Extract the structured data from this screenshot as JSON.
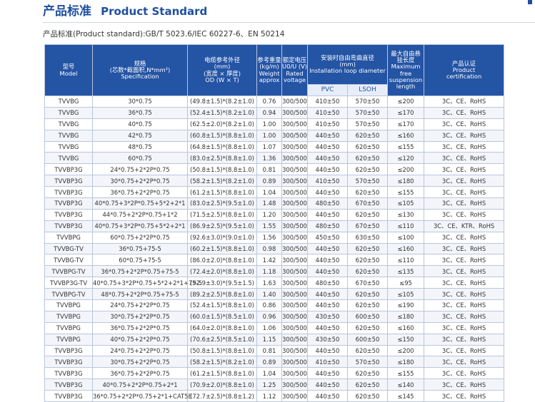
{
  "header": {
    "title_zh": "产品标准",
    "title_en": "Product Standard",
    "standard_line": "产品标准(Product standard):GB/T 5023.6/IEC 60227-6、EN 50214"
  },
  "table": {
    "columns": {
      "model": [
        "型号",
        "Model"
      ],
      "spec": [
        "规格",
        "(芯数*截面积,N*mm²)",
        "Specification"
      ],
      "od": [
        "电缆参考外径",
        "(mm)",
        "(宽度 × 厚度)",
        "OD (W × T)"
      ],
      "weight": [
        "参考重量",
        "(kg/m)",
        "Weight",
        "approx"
      ],
      "voltage": [
        "额定电压",
        "U0/U (V)",
        "Rated",
        "voltage"
      ],
      "install": [
        "安装时自由弯曲直径",
        "(mm)",
        "Installation loop diameter"
      ],
      "pvc": "PVC",
      "lsoh": "LSOH",
      "suspension": [
        "最大自由悬",
        "挂长度",
        "Maximum",
        "free",
        "suspension",
        "length"
      ],
      "cert": [
        "产品认证",
        "Product",
        "certification"
      ]
    },
    "rows": [
      [
        "TVVBG",
        "30*0.75",
        "(49.8±1.5)*(8.2±1.0)",
        "0.76",
        "300/500",
        "410±50",
        "570±50",
        "≤200",
        "3C、CE、RoHS"
      ],
      [
        "TVVBG",
        "36*0.75",
        "(52.4±1.5)*(8.2±1.0)",
        "0.94",
        "300/500",
        "410±50",
        "570±50",
        "≤170",
        "3C、CE、RoHS"
      ],
      [
        "TVVBG",
        "40*0.75",
        "(62.5±2.0)*(8.2±1.0)",
        "1.00",
        "300/500",
        "410±50",
        "570±50",
        "≤170",
        "3C、CE、RoHS"
      ],
      [
        "TVVBG",
        "42*0.75",
        "(60.8±1.5)*(8.8±1.0)",
        "1.00",
        "300/500",
        "440±50",
        "620±50",
        "≤160",
        "3C、CE、RoHS"
      ],
      [
        "TVVBG",
        "48*0.75",
        "(64.8±1.5)*(8.8±1.0)",
        "1.07",
        "300/500",
        "440±50",
        "620±50",
        "≤155",
        "3C、CE、RoHS"
      ],
      [
        "TVVBG",
        "60*0.75",
        "(83.0±2.5)*(8.8±1.0)",
        "1.36",
        "300/500",
        "440±50",
        "620±50",
        "≤120",
        "3C、CE、RoHS"
      ],
      [
        "TVVBP3G",
        "24*0.75+2*2P*0.75",
        "(50.8±1.5)*(8.8±1.0)",
        "0.81",
        "300/500",
        "440±50",
        "620±50",
        "≤200",
        "3C、CE、RoHS"
      ],
      [
        "TVVBP3G",
        "30*0.75+2*2P*0.75",
        "(58.2±1.5)*(8.2±1.0)",
        "0.89",
        "300/500",
        "410±50",
        "570±50",
        "≤180",
        "3C、CE、RoHS"
      ],
      [
        "TVVBP3G",
        "36*0.75+2*2P*0.75",
        "(61.2±1.5)*(8.8±1.0)",
        "1.04",
        "300/500",
        "440±50",
        "620±50",
        "≤155",
        "3C、CE、RoHS"
      ],
      [
        "TVVBP3G",
        "40*0.75+3*2P*0.75+5*2+2*1",
        "(83.0±2.5)*(9.5±1.0)",
        "1.48",
        "300/500",
        "480±50",
        "670±50",
        "≤105",
        "3C、CE、RoHS"
      ],
      [
        "TVVBP3G",
        "44*0.75+2*2P*0.75+1*2",
        "(71.5±2.5)*(8.8±1.0)",
        "1.20",
        "300/500",
        "440±50",
        "620±50",
        "≤130",
        "3C、CE、RoHS"
      ],
      [
        "TVVBP3G",
        "40*0.75+3*2P*0.75+5*2+2*1",
        "(86.9±2.5)*(9.5±1.0)",
        "1.55",
        "300/500",
        "480±50",
        "670±50",
        "≤110",
        "3C、CE、KTR、RoHS"
      ],
      [
        "TVVBPG",
        "60*0.75+2*2P*0.75",
        "(92.6±3.0)*(9.0±1.0)",
        "1.56",
        "300/500",
        "450±50",
        "630±50",
        "≤100",
        "3C、CE、RoHS"
      ],
      [
        "TVVBG-TV",
        "36*0.75+75-5",
        "(60.2±1.5)*(8.8±1.0)",
        "0.98",
        "300/500",
        "440±50",
        "620±50",
        "≤160",
        "3C、CE、RoHS"
      ],
      [
        "TVVBG-TV",
        "60*0.75+75-5",
        "(86.0±2.0)*(8.8±1.0)",
        "1.42",
        "300/500",
        "440±50",
        "620±50",
        "≤110",
        "3C、CE、RoHS"
      ],
      [
        "TVVBPG-TV",
        "36*0.75+2*2P*0.75+75-5",
        "(72.4±2.0)*(8.8±1.0)",
        "1.18",
        "300/500",
        "440±50",
        "620±50",
        "≤135",
        "3C、CE、RoHS"
      ],
      [
        "TVVBP3G-TV",
        "40*0.75+3*2P*0.75+5*2+2*1+75-5",
        "(92.9±3.0)*(9.5±1.5)",
        "1.63",
        "300/500",
        "480±50",
        "670±50",
        "≤95",
        "3C、CE、RoHS"
      ],
      [
        "TVVBPG-TV",
        "48*0.75+2*2P*0.75+75-5",
        "(89.2±2.5)*(8.8±1.0)",
        "1.40",
        "300/500",
        "440±50",
        "620±50",
        "≤105",
        "3C、CE、RoHS"
      ],
      [
        "TVVBPG",
        "24*0.75+2*2P*0.75",
        "(52.4±1.5)*(8.8±1.0)",
        "0.86",
        "300/500",
        "440±50",
        "620±50",
        "≤190",
        "3C、CE、RoHS"
      ],
      [
        "TVVBPG",
        "30*0.75+2*2P*0.75",
        "(60.0±1.5)*(8.5±1.0)",
        "0.96",
        "300/500",
        "430±50",
        "600±50",
        "≤180",
        "3C、CE、RoHS"
      ],
      [
        "TVVBPG",
        "36*0.75+2*2P*0.75",
        "(64.0±2.0)*(8.8±1.0)",
        "1.06",
        "300/500",
        "440±50",
        "620±50",
        "≤160",
        "3C、CE、RoHS"
      ],
      [
        "TVVBPG",
        "40*0.75+2*2P*0.75",
        "(70.6±2.5)*(8.5±1.0)",
        "1.15",
        "300/500",
        "430±50",
        "600±50",
        "≤150",
        "3C、CE、RoHS"
      ],
      [
        "TVVBP3G",
        "24*0.75+2*2P*0.75",
        "(50.8±1.5)*(8.8±1.0)",
        "0.81",
        "300/500",
        "440±50",
        "620±50",
        "≤200",
        "3C、CE、RoHS"
      ],
      [
        "TVVBP3G",
        "30*0.75+2*2P*0.75",
        "(58.2±1.5)*(8.2±1.0)",
        "0.89",
        "300/500",
        "410±50",
        "570±50",
        "≤180",
        "3C、CE、RoHS"
      ],
      [
        "TVVBP3G",
        "36*0.75+2*2P*0.75",
        "(61.2±1.5)*(8.8±1.0)",
        "1.04",
        "300/500",
        "440±50",
        "620±50",
        "≤155",
        "3C、CE、RoHS"
      ],
      [
        "TVVBP3G",
        "40*0.75+2*2P*0.75+2*1",
        "(70.9±2.0)*(8.8±1.0)",
        "1.25",
        "300/500",
        "440±50",
        "620±50",
        "≤140",
        "3C、CE、RoHS"
      ],
      [
        "TVVBP3G",
        "36*0.75+2*2P*0.75+2*1+CAT5E",
        "(72.7±2.5)*(8.8±1.2)",
        "1.12",
        "300/500",
        "440±50",
        "620±50",
        "≤145",
        "3C、CE、RoHS"
      ]
    ]
  }
}
